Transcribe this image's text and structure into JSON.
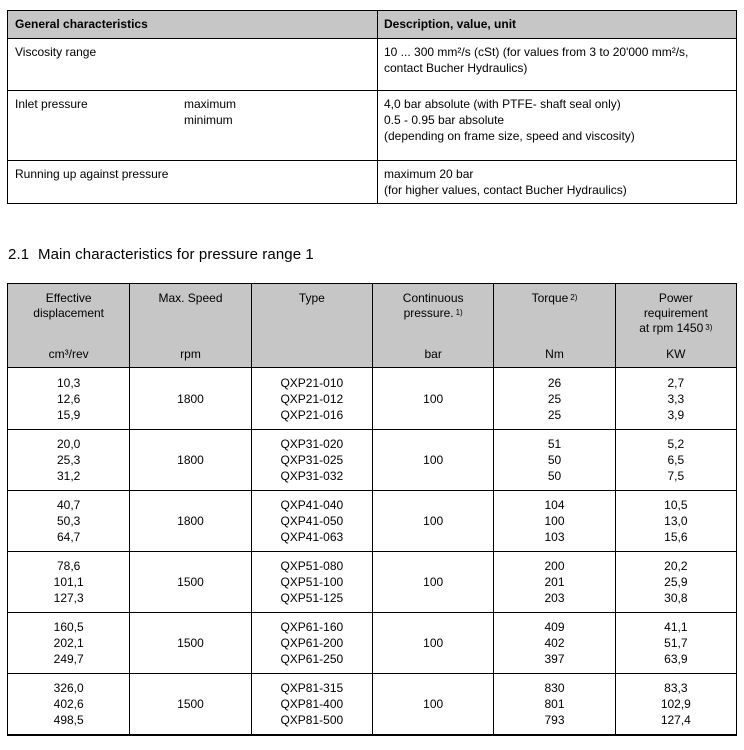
{
  "page": {
    "background": "#ffffff",
    "table_header_bg": "#c6c6c6",
    "border_color": "#000000"
  },
  "general_table": {
    "header": {
      "characteristics": "General characteristics",
      "description": "Description, value, unit"
    },
    "rows": [
      {
        "label": "Viscosity range",
        "desc": [
          "10 ... 300 mm²/s (cSt) (for values from 3 to 20'000 mm²/s,",
          "contact Bucher Hydraulics)"
        ]
      },
      {
        "label": "Inlet pressure",
        "sub": [
          "maximum",
          "minimum"
        ],
        "desc": [
          "4,0 bar absolute (with PTFE- shaft seal only)",
          "0.5 - 0.95 bar absolute",
          "(depending on frame size, speed and viscosity)"
        ]
      },
      {
        "label": "Running up against pressure",
        "desc": [
          "maximum 20 bar",
          "(for higher values, contact Bucher Hydraulics)"
        ]
      }
    ]
  },
  "section_heading": {
    "number": "2.1",
    "title": "Main characteristics for pressure range 1"
  },
  "main_table": {
    "header": {
      "effective_displacement": {
        "line1": "Effective",
        "line2": "displacement",
        "unit": "cm³/rev"
      },
      "max_speed": {
        "line1": "Max. Speed",
        "unit": "rpm"
      },
      "type": {
        "line1": "Type",
        "unit": ""
      },
      "continuous_pressure": {
        "line1": "Continuous",
        "line2": "pressure.",
        "sup": "1)",
        "unit": "bar"
      },
      "torque": {
        "line1": "Torque",
        "sup": "2)",
        "unit": "Nm"
      },
      "power": {
        "line1": "Power",
        "line2": "requirement",
        "line3": "at rpm 1450",
        "sup": "3)",
        "unit": "KW"
      }
    },
    "groups": [
      {
        "displacement": [
          "10,3",
          "12,6",
          "15,9"
        ],
        "speed": "1800",
        "types": [
          "QXP21-010",
          "QXP21-012",
          "QXP21-016"
        ],
        "pressure": "100",
        "torque": [
          "26",
          "25",
          "25"
        ],
        "power": [
          "2,7",
          "3,3",
          "3,9"
        ]
      },
      {
        "displacement": [
          "20,0",
          "25,3",
          "31,2"
        ],
        "speed": "1800",
        "types": [
          "QXP31-020",
          "QXP31-025",
          "QXP31-032"
        ],
        "pressure": "100",
        "torque": [
          "51",
          "50",
          "50"
        ],
        "power": [
          "5,2",
          "6,5",
          "7,5"
        ]
      },
      {
        "displacement": [
          "40,7",
          "50,3",
          "64,7"
        ],
        "speed": "1800",
        "types": [
          "QXP41-040",
          "QXP41-050",
          "QXP41-063"
        ],
        "pressure": "100",
        "torque": [
          "104",
          "100",
          "103"
        ],
        "power": [
          "10,5",
          "13,0",
          "15,6"
        ]
      },
      {
        "displacement": [
          "78,6",
          "101,1",
          "127,3"
        ],
        "speed": "1500",
        "types": [
          "QXP51-080",
          "QXP51-100",
          "QXP51-125"
        ],
        "pressure": "100",
        "torque": [
          "200",
          "201",
          "203"
        ],
        "power": [
          "20,2",
          "25,9",
          "30,8"
        ]
      },
      {
        "displacement": [
          "160,5",
          "202,1",
          "249,7"
        ],
        "speed": "1500",
        "types": [
          "QXP61-160",
          "QXP61-200",
          "QXP61-250"
        ],
        "pressure": "100",
        "torque": [
          "409",
          "402",
          "397"
        ],
        "power": [
          "41,1",
          "51,7",
          "63,9"
        ]
      },
      {
        "displacement": [
          "326,0",
          "402,6",
          "498,5"
        ],
        "speed": "1500",
        "types": [
          "QXP81-315",
          "QXP81-400",
          "QXP81-500"
        ],
        "pressure": "100",
        "torque": [
          "830",
          "801",
          "793"
        ],
        "power": [
          "83,3",
          "102,9",
          "127,4"
        ]
      }
    ]
  }
}
